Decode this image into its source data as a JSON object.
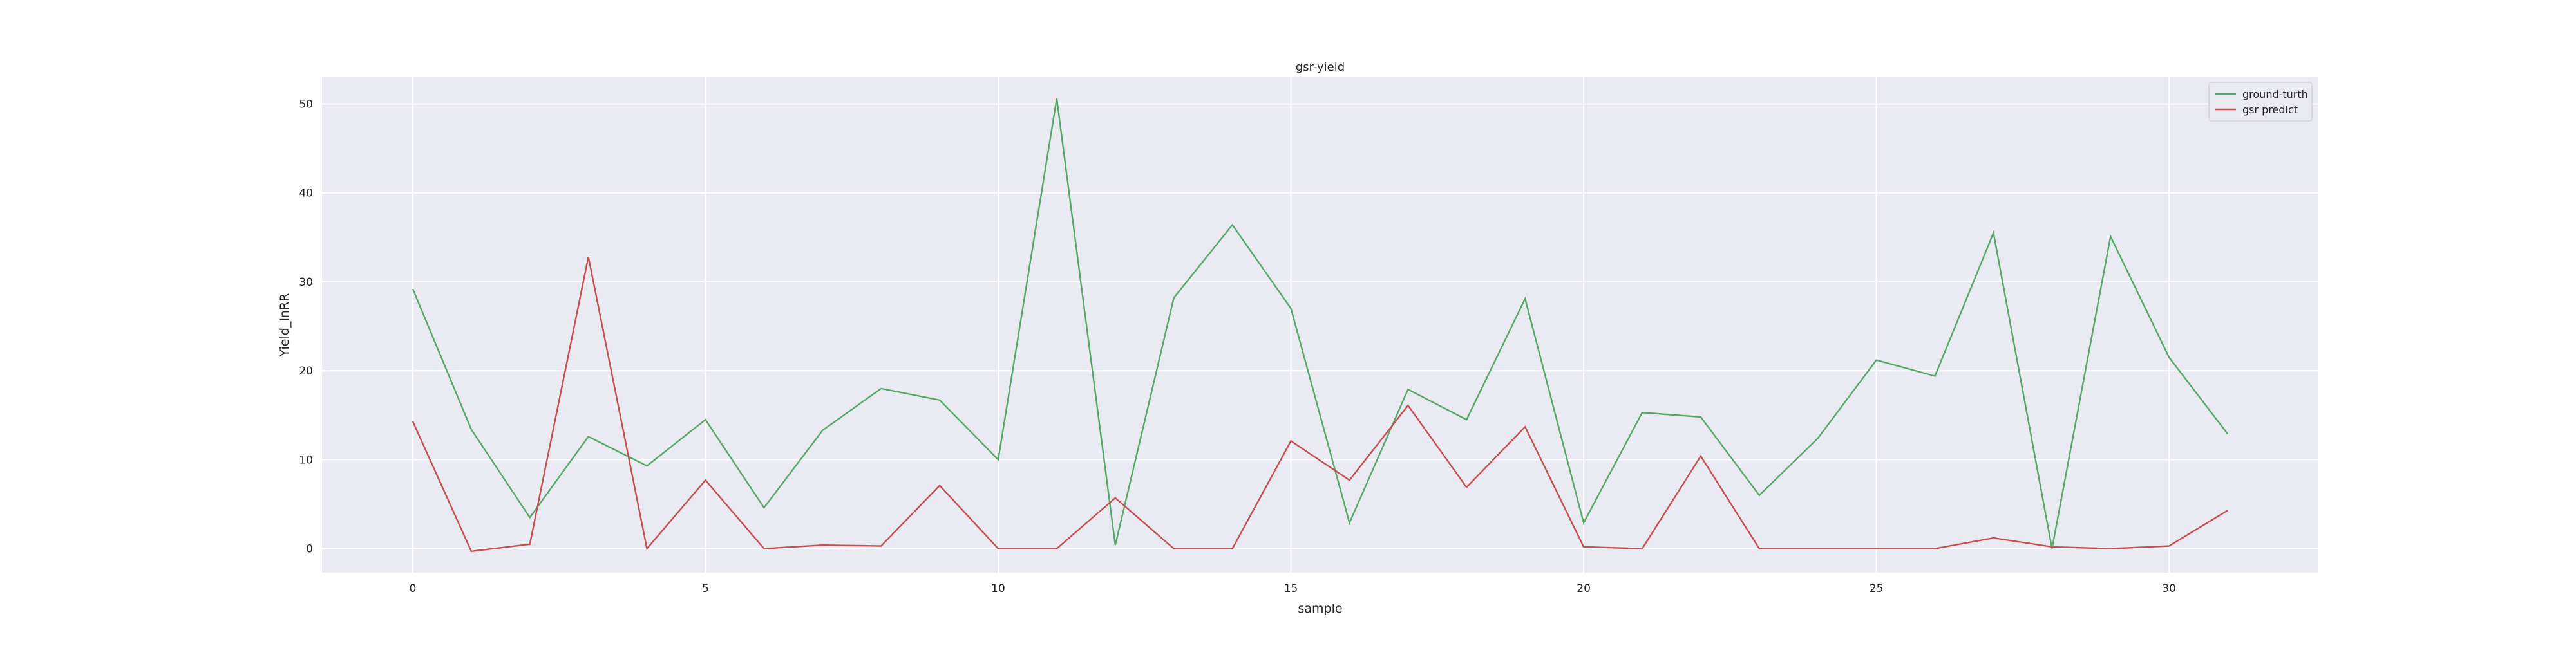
{
  "chart_data": {
    "type": "line",
    "title": "gsr-yield",
    "xlabel": "sample",
    "ylabel": "Yield_InRR",
    "xlim": [
      -1.55,
      32.55
    ],
    "ylim": [
      -2.7,
      53.0
    ],
    "x_ticks": [
      0,
      5,
      10,
      15,
      20,
      25,
      30
    ],
    "y_ticks": [
      0,
      10,
      20,
      30,
      40,
      50
    ],
    "grid": true,
    "legend_position": "top-right",
    "x": [
      0,
      1,
      2,
      3,
      4,
      5,
      6,
      7,
      8,
      9,
      10,
      11,
      12,
      13,
      14,
      15,
      16,
      17,
      18,
      19,
      20,
      21,
      22,
      23,
      24,
      25,
      26,
      27,
      28,
      29,
      30,
      31
    ],
    "series": [
      {
        "name": "ground-turth",
        "color": "#55a868",
        "values": [
          29.2,
          13.4,
          3.5,
          12.6,
          9.3,
          14.5,
          4.6,
          13.3,
          18.0,
          16.7,
          10.0,
          50.6,
          0.4,
          28.2,
          36.4,
          27.0,
          2.9,
          17.9,
          14.5,
          28.1,
          2.9,
          15.3,
          14.8,
          6.0,
          12.4,
          21.2,
          19.4,
          35.5,
          0.0,
          35.1,
          21.5,
          12.9
        ]
      },
      {
        "name": "gsr predict",
        "color": "#c44e52",
        "values": [
          14.3,
          -0.3,
          0.5,
          32.8,
          0.0,
          7.7,
          0.0,
          0.4,
          0.3,
          7.1,
          0.0,
          0.0,
          5.7,
          0.0,
          0.0,
          12.1,
          7.7,
          16.1,
          6.9,
          13.7,
          0.2,
          0.0,
          10.4,
          0.0,
          0.0,
          0.0,
          0.0,
          1.2,
          0.2,
          0.0,
          0.3,
          4.3
        ]
      }
    ]
  }
}
